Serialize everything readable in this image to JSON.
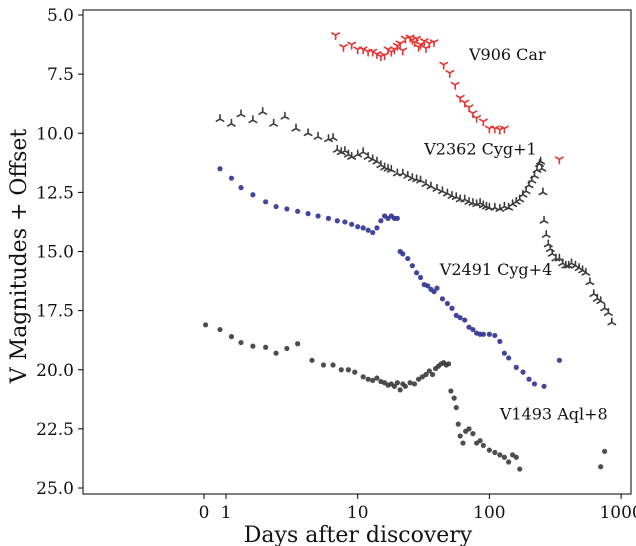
{
  "chart_data": {
    "type": "scatter",
    "title": "",
    "xlabel": "Days after discovery",
    "ylabel": "V Magnitudes + Offset",
    "x_scale": "log",
    "x_ticks": [
      {
        "label": "0",
        "value": 0
      },
      {
        "label": "1",
        "value": 1
      },
      {
        "label": "10",
        "value": 10
      },
      {
        "label": "100",
        "value": 100
      },
      {
        "label": "1000",
        "value": 1000
      }
    ],
    "y_ticks": [
      {
        "label": "5.0",
        "value": 5.0
      },
      {
        "label": "7.5",
        "value": 7.5
      },
      {
        "label": "10.0",
        "value": 10.0
      },
      {
        "label": "12.5",
        "value": 12.5
      },
      {
        "label": "15.0",
        "value": 15.0
      },
      {
        "label": "17.5",
        "value": 17.5
      },
      {
        "label": "20.0",
        "value": 20.0
      },
      {
        "label": "22.5",
        "value": 22.5
      },
      {
        "label": "25.0",
        "value": 25.0
      }
    ],
    "ylim": [
      5.0,
      25.0
    ],
    "y_inverted": true,
    "grid": false,
    "series": [
      {
        "name": "V906 Car",
        "color": "#e8312f",
        "marker": "tri-down",
        "label_at": [
          70,
          6.9
        ],
        "x": [
          6.8,
          7.8,
          9,
          10,
          11,
          12,
          13,
          14,
          15,
          16,
          17,
          18,
          19,
          20,
          21,
          22,
          23,
          25,
          26,
          27,
          28,
          29,
          30,
          32,
          33,
          35,
          38,
          45,
          50,
          55,
          60,
          65,
          70,
          75,
          80,
          90,
          100,
          110,
          120,
          130,
          340
        ],
        "y": [
          5.85,
          6.35,
          6.25,
          6.45,
          6.45,
          6.55,
          6.55,
          6.65,
          6.75,
          6.7,
          6.45,
          6.55,
          6.45,
          6.3,
          6.2,
          6.5,
          6.0,
          5.95,
          6.05,
          6.15,
          6.0,
          6.35,
          6.25,
          6.1,
          6.4,
          6.2,
          6.15,
          7.1,
          7.45,
          7.95,
          8.5,
          8.7,
          8.9,
          9.15,
          9.35,
          9.5,
          9.8,
          9.8,
          9.85,
          9.8,
          11.1
        ]
      },
      {
        "name": "V2362 Cyg+1",
        "color": "#3a3a3a",
        "marker": "tri-up",
        "label_at": [
          32,
          10.9
        ],
        "x": [
          0.9,
          1.1,
          1.3,
          1.6,
          1.9,
          2.3,
          2.8,
          3.4,
          4.2,
          5,
          6,
          6.5,
          7,
          7.5,
          8,
          8.5,
          9,
          10,
          11,
          12,
          13,
          14,
          15,
          16,
          17,
          18,
          20,
          22,
          24,
          26,
          28,
          30,
          33,
          36,
          40,
          44,
          48,
          52,
          56,
          60,
          65,
          70,
          75,
          80,
          85,
          90,
          95,
          100,
          110,
          120,
          130,
          140,
          150,
          160,
          170,
          180,
          190,
          200,
          210,
          220,
          230,
          240,
          245,
          250,
          255,
          260,
          270,
          280,
          290,
          300,
          320,
          340,
          360,
          380,
          400,
          420,
          450,
          480,
          510,
          540,
          580,
          620,
          660,
          700,
          750,
          800,
          850
        ],
        "y": [
          9.4,
          9.6,
          9.2,
          9.45,
          9.1,
          9.6,
          9.3,
          9.8,
          10.0,
          10.15,
          10.25,
          10.2,
          10.7,
          10.8,
          10.75,
          10.9,
          11.0,
          10.9,
          10.8,
          11.0,
          11.1,
          11.2,
          11.35,
          11.45,
          11.5,
          11.55,
          11.7,
          11.7,
          11.8,
          11.9,
          11.95,
          12.0,
          12.15,
          12.25,
          12.35,
          12.45,
          12.55,
          12.65,
          12.7,
          12.8,
          12.8,
          12.9,
          12.95,
          13.0,
          12.95,
          13.05,
          13.1,
          13.15,
          13.15,
          13.2,
          13.1,
          13.15,
          13.0,
          12.9,
          12.8,
          12.6,
          12.45,
          12.2,
          12.0,
          11.8,
          11.55,
          11.3,
          11.2,
          11.5,
          12.5,
          13.7,
          14.3,
          14.7,
          14.9,
          15.1,
          15.3,
          15.3,
          15.5,
          15.6,
          15.6,
          15.5,
          15.6,
          15.7,
          15.8,
          15.9,
          16.3,
          16.8,
          17.0,
          17.1,
          17.4,
          17.6,
          18.0
        ]
      },
      {
        "name": "V2491 Cyg+4",
        "color": "#2e3192",
        "marker": "circle",
        "label_at": [
          42,
          16.0
        ],
        "x": [
          0.9,
          1.1,
          1.3,
          1.6,
          2,
          2.4,
          2.9,
          3.5,
          4.2,
          5,
          6,
          7,
          8,
          9,
          10,
          11,
          12,
          13,
          14,
          15,
          16,
          17,
          18,
          19,
          20,
          21,
          22,
          24,
          26,
          28,
          30,
          32,
          34,
          36,
          38,
          40,
          44,
          48,
          52,
          56,
          60,
          65,
          70,
          75,
          80,
          85,
          90,
          100,
          110,
          120,
          130,
          140,
          160,
          180,
          200,
          220,
          260,
          340
        ],
        "y": [
          11.5,
          11.9,
          12.3,
          12.6,
          12.9,
          13.1,
          13.2,
          13.3,
          13.4,
          13.5,
          13.6,
          13.7,
          13.75,
          13.85,
          13.95,
          14.0,
          14.1,
          14.2,
          14.0,
          13.7,
          13.5,
          13.6,
          13.5,
          13.6,
          13.6,
          15.0,
          15.1,
          15.3,
          15.6,
          15.9,
          16.1,
          16.4,
          16.45,
          16.6,
          16.7,
          16.55,
          17.0,
          17.2,
          17.4,
          17.7,
          17.8,
          17.9,
          18.2,
          18.3,
          18.45,
          18.5,
          18.5,
          18.5,
          18.55,
          18.8,
          19.3,
          19.5,
          19.9,
          20.1,
          20.4,
          20.6,
          20.7,
          19.6
        ]
      },
      {
        "name": "V1493 Aql+8",
        "color": "#3a3a3a",
        "marker": "circle",
        "label_at": [
          120,
          22.1
        ],
        "x": [
          0.7,
          0.9,
          1.1,
          1.3,
          1.6,
          2,
          2.4,
          2.9,
          3.5,
          4.5,
          5.5,
          6.5,
          7.5,
          8.5,
          9.5,
          11,
          12,
          13,
          14,
          15,
          16,
          17,
          18,
          19,
          20,
          21,
          22,
          23,
          25,
          27,
          29,
          31,
          33,
          35,
          37,
          39,
          41,
          43,
          45,
          47,
          49,
          51,
          54,
          56,
          58,
          60,
          63,
          66,
          70,
          75,
          80,
          85,
          90,
          100,
          110,
          120,
          130,
          140,
          150,
          160,
          170,
          700,
          750
        ],
        "y": [
          18.1,
          18.3,
          18.6,
          18.85,
          19.0,
          19.05,
          19.3,
          19.1,
          18.9,
          19.6,
          19.8,
          19.8,
          20.0,
          20.0,
          20.1,
          20.3,
          20.4,
          20.45,
          20.35,
          20.5,
          20.55,
          20.65,
          20.6,
          20.7,
          20.55,
          20.85,
          20.6,
          20.7,
          20.55,
          20.6,
          20.4,
          20.3,
          20.2,
          20.05,
          20.2,
          19.95,
          19.85,
          19.75,
          19.7,
          19.8,
          19.75,
          20.9,
          21.2,
          21.6,
          22.3,
          22.8,
          23.1,
          22.6,
          22.5,
          22.7,
          23.1,
          23.0,
          23.2,
          23.4,
          23.5,
          23.6,
          23.7,
          23.9,
          23.6,
          23.7,
          24.2,
          24.1,
          23.45
        ]
      }
    ]
  }
}
